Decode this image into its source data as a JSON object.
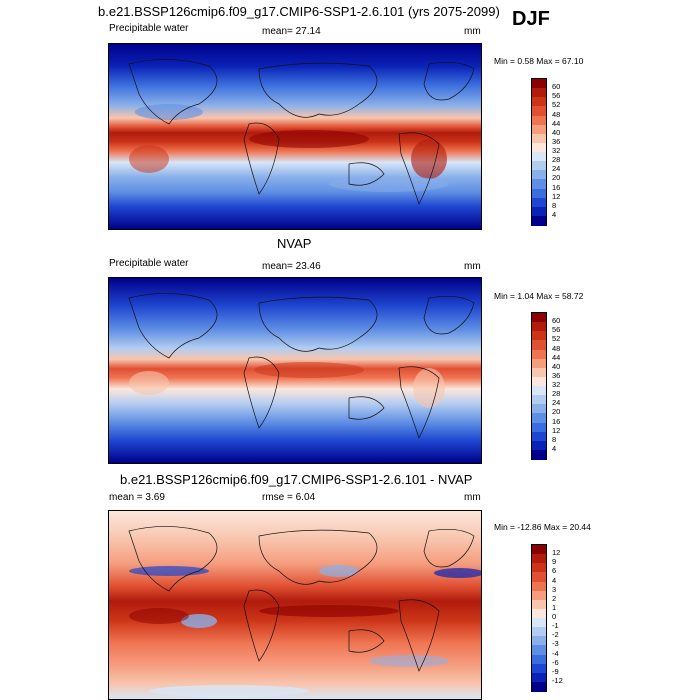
{
  "header": {
    "title": "b.e21.BSSP126cmip6.f09_g17.CMIP6-SSP1-2.6.101 (yrs 2075-2099)",
    "season": "DJF"
  },
  "panels": [
    {
      "id": "model",
      "title": "",
      "left_label": "Precipitable water",
      "center_label": "mean=  27.14",
      "right_label": "mm",
      "minmax": "Min =   0.58 Max =  67.10",
      "levels": [
        "60",
        "56",
        "52",
        "48",
        "44",
        "40",
        "36",
        "32",
        "28",
        "24",
        "20",
        "16",
        "12",
        "8",
        "4"
      ],
      "colors": [
        "#8b0000",
        "#b11b0c",
        "#cc3418",
        "#e05033",
        "#ef7452",
        "#f59d7f",
        "#f8c5ad",
        "#fbe7db",
        "#d8e6f6",
        "#b3cdf0",
        "#8ab0ea",
        "#5f8fe4",
        "#3a6ddd",
        "#1e46d0",
        "#0b22b6",
        "#00008b"
      ]
    },
    {
      "id": "obs",
      "title": "NVAP",
      "left_label": "Precipitable water",
      "center_label": "mean=  23.46",
      "right_label": "mm",
      "minmax": "Min =   1.04 Max =  58.72",
      "levels": [
        "60",
        "56",
        "52",
        "48",
        "44",
        "40",
        "36",
        "32",
        "28",
        "24",
        "20",
        "16",
        "12",
        "8",
        "4"
      ],
      "colors": [
        "#8b0000",
        "#b11b0c",
        "#cc3418",
        "#e05033",
        "#ef7452",
        "#f59d7f",
        "#f8c5ad",
        "#fbe7db",
        "#d8e6f6",
        "#b3cdf0",
        "#8ab0ea",
        "#5f8fe4",
        "#3a6ddd",
        "#1e46d0",
        "#0b22b6",
        "#00008b"
      ]
    },
    {
      "id": "diff",
      "title": "b.e21.BSSP126cmip6.f09_g17.CMIP6-SSP1-2.6.101 - NVAP",
      "left_label": "mean =   3.69",
      "center_label": "rmse =   6.04",
      "right_label": "mm",
      "minmax": "Min = -12.86 Max =  20.44",
      "levels": [
        "12",
        "9",
        "6",
        "4",
        "3",
        "2",
        "1",
        "0",
        "-1",
        "-2",
        "-3",
        "-4",
        "-6",
        "-9",
        "-12"
      ],
      "colors": [
        "#8b0000",
        "#b11b0c",
        "#cc3418",
        "#e05033",
        "#ef7452",
        "#f59d7f",
        "#f8c5ad",
        "#fbe7db",
        "#d8e6f6",
        "#b3cdf0",
        "#8ab0ea",
        "#5f8fe4",
        "#3a6ddd",
        "#1e46d0",
        "#0b22b6",
        "#00008b"
      ]
    }
  ]
}
